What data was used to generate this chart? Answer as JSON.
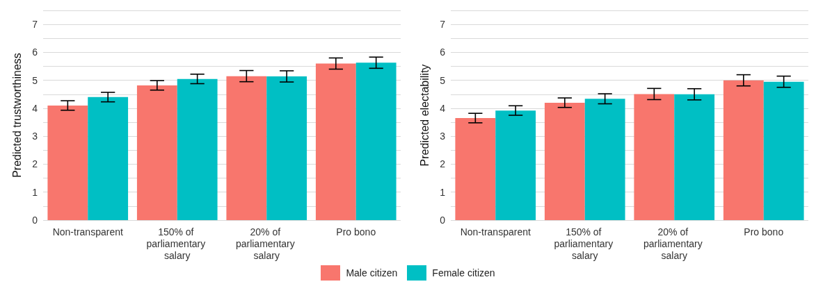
{
  "chart_data": [
    {
      "type": "bar",
      "ylabel": "Predicted trustworthiness",
      "categories": [
        "Non-transparent",
        "150% of parliamentary salary",
        "20% of parliamentary salary",
        "Pro bono"
      ],
      "series": [
        {
          "name": "Male citizen",
          "color": "#f8766d",
          "values": [
            4.1,
            4.82,
            5.15,
            5.6
          ],
          "errors": [
            0.17,
            0.17,
            0.2,
            0.2
          ]
        },
        {
          "name": "Female citizen",
          "color": "#00bfc4",
          "values": [
            4.4,
            5.05,
            5.14,
            5.63
          ],
          "errors": [
            0.17,
            0.17,
            0.2,
            0.2
          ]
        }
      ],
      "ylim": [
        0,
        7.5
      ],
      "yticks": [
        0,
        {
          "value": 0.5,
          "label": null
        },
        1,
        {
          "value": 1.5,
          "label": null
        },
        2,
        {
          "value": 2.5,
          "label": null
        },
        3,
        {
          "value": 3.5,
          "label": null
        },
        4,
        {
          "value": 4.5,
          "label": null
        },
        5,
        {
          "value": 5.5,
          "label": null
        },
        6,
        {
          "value": 6.5,
          "label": null
        },
        7,
        {
          "value": 7.5,
          "label": null
        }
      ],
      "grid": "y",
      "legend": "bottom"
    },
    {
      "type": "bar",
      "ylabel": "Predicted electability",
      "categories": [
        "Non-transparent",
        "150% of parliamentary salary",
        "20% of parliamentary salary",
        "Pro bono"
      ],
      "series": [
        {
          "name": "Male citizen",
          "color": "#f8766d",
          "values": [
            3.65,
            4.2,
            4.51,
            5.0
          ],
          "errors": [
            0.17,
            0.17,
            0.2,
            0.2
          ]
        },
        {
          "name": "Female citizen",
          "color": "#00bfc4",
          "values": [
            3.92,
            4.34,
            4.5,
            4.95
          ],
          "errors": [
            0.17,
            0.18,
            0.2,
            0.2
          ]
        }
      ],
      "ylim": [
        0,
        7.5
      ],
      "yticks": [
        0,
        {
          "value": 0.5,
          "label": null
        },
        1,
        {
          "value": 1.5,
          "label": null
        },
        2,
        {
          "value": 2.5,
          "label": null
        },
        3,
        {
          "value": 3.5,
          "label": null
        },
        4,
        {
          "value": 4.5,
          "label": null
        },
        5,
        {
          "value": 5.5,
          "label": null
        },
        6,
        {
          "value": 6.5,
          "label": null
        },
        7,
        {
          "value": 7.5,
          "label": null
        }
      ],
      "grid": "y",
      "legend": "bottom"
    }
  ]
}
